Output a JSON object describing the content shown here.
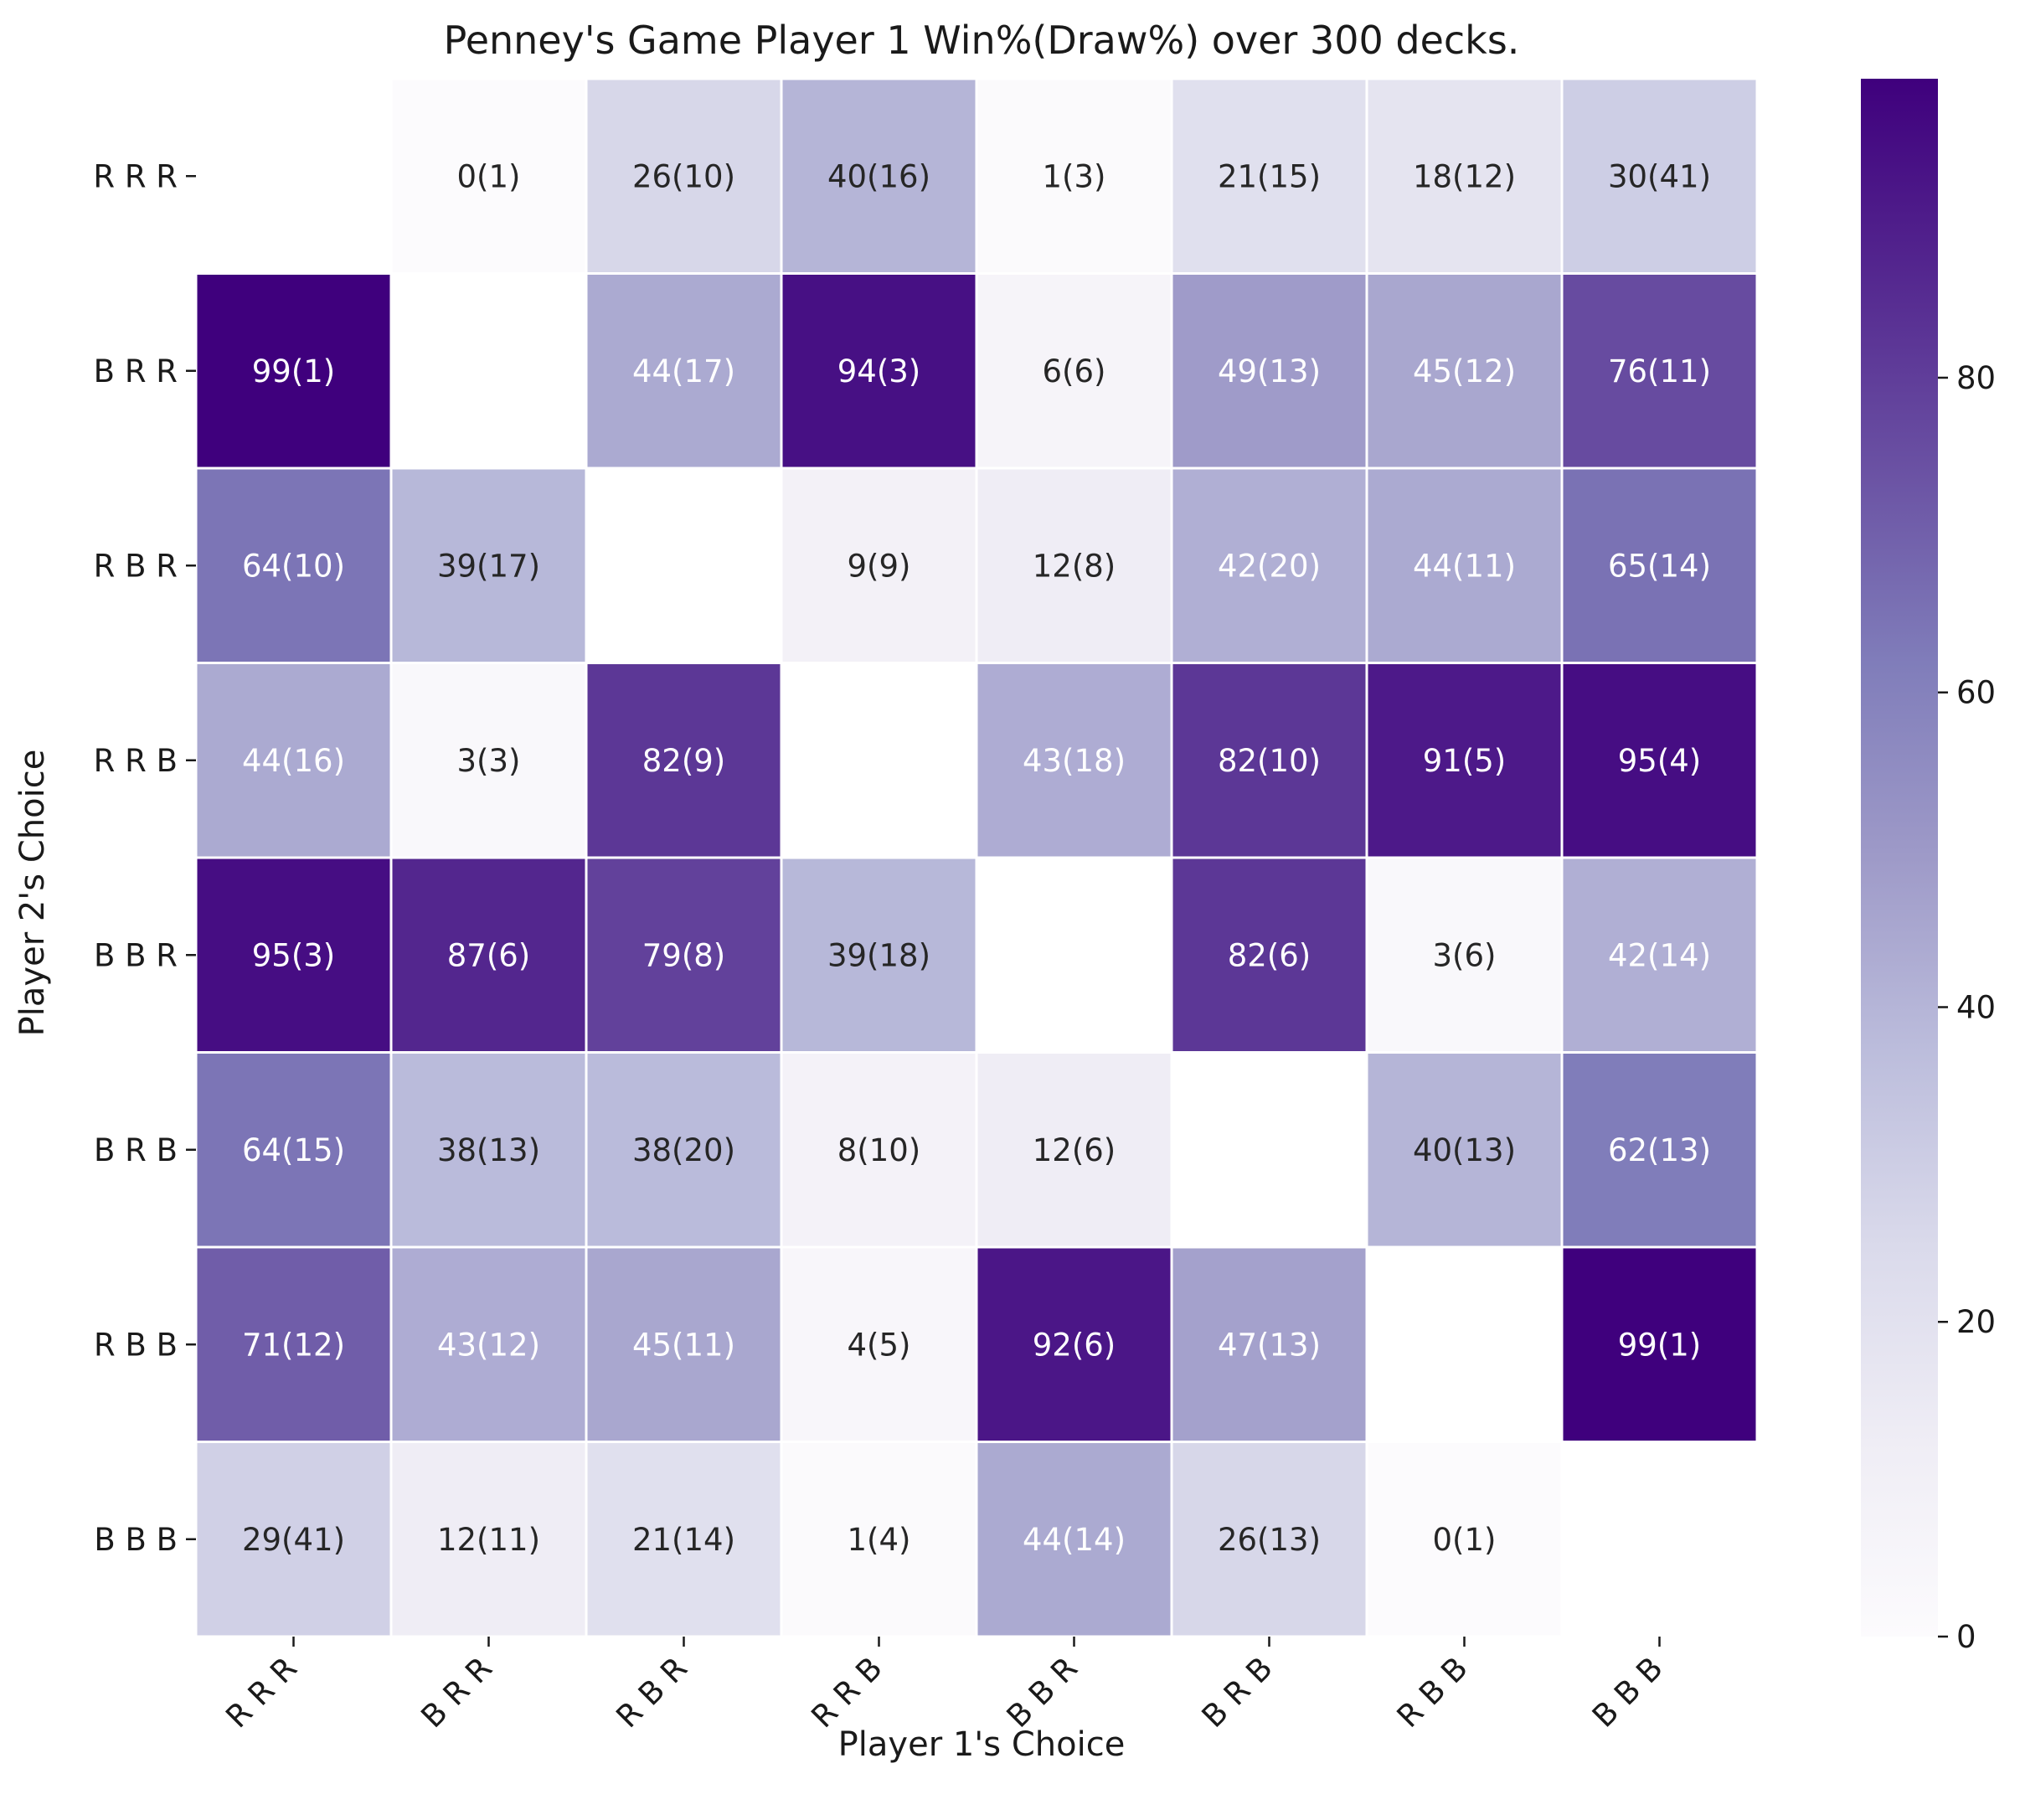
{
  "chart_data": {
    "type": "heatmap",
    "title": "Penney's Game Player 1 Win%(Draw%) over 300 decks.",
    "xlabel": "Player 1's Choice",
    "ylabel": "Player 2's Choice",
    "x_categories": [
      "R R R",
      "B R R",
      "R B R",
      "R R B",
      "B B R",
      "B R B",
      "R B B",
      "B B B"
    ],
    "y_categories": [
      "R R R",
      "B R R",
      "R B R",
      "R R B",
      "B B R",
      "B R B",
      "R B B",
      "B B B"
    ],
    "win": [
      [
        null,
        0,
        26,
        40,
        1,
        21,
        18,
        30
      ],
      [
        99,
        null,
        44,
        94,
        6,
        49,
        45,
        76
      ],
      [
        64,
        39,
        null,
        9,
        12,
        42,
        44,
        65
      ],
      [
        44,
        3,
        82,
        null,
        43,
        82,
        91,
        95
      ],
      [
        95,
        87,
        79,
        39,
        null,
        82,
        3,
        42
      ],
      [
        64,
        38,
        38,
        8,
        12,
        null,
        40,
        62
      ],
      [
        71,
        43,
        45,
        4,
        92,
        47,
        null,
        99
      ],
      [
        29,
        12,
        21,
        1,
        44,
        26,
        0,
        null
      ]
    ],
    "draw": [
      [
        null,
        1,
        10,
        16,
        3,
        15,
        12,
        41
      ],
      [
        1,
        null,
        17,
        3,
        6,
        13,
        12,
        11
      ],
      [
        10,
        17,
        null,
        9,
        8,
        20,
        11,
        14
      ],
      [
        16,
        3,
        9,
        null,
        18,
        10,
        5,
        4
      ],
      [
        3,
        6,
        8,
        18,
        null,
        6,
        6,
        14
      ],
      [
        15,
        13,
        20,
        10,
        6,
        null,
        13,
        13
      ],
      [
        12,
        12,
        11,
        5,
        6,
        13,
        null,
        1
      ],
      [
        41,
        11,
        14,
        4,
        14,
        13,
        1,
        null
      ]
    ],
    "annotations": [
      [
        "",
        "0(1)",
        "26(10)",
        "40(16)",
        "1(3)",
        "21(15)",
        "18(12)",
        "30(41)"
      ],
      [
        "99(1)",
        "",
        "44(17)",
        "94(3)",
        "6(6)",
        "49(13)",
        "45(12)",
        "76(11)"
      ],
      [
        "64(10)",
        "39(17)",
        "",
        "9(9)",
        "12(8)",
        "42(20)",
        "44(11)",
        "65(14)"
      ],
      [
        "44(16)",
        "3(3)",
        "82(9)",
        "",
        "43(18)",
        "82(10)",
        "91(5)",
        "95(4)"
      ],
      [
        "95(3)",
        "87(6)",
        "79(8)",
        "39(18)",
        "",
        "82(6)",
        "3(6)",
        "42(14)"
      ],
      [
        "64(15)",
        "38(13)",
        "38(20)",
        "8(10)",
        "12(6)",
        "",
        "40(13)",
        "62(13)"
      ],
      [
        "71(12)",
        "43(12)",
        "45(11)",
        "4(5)",
        "92(6)",
        "47(13)",
        "",
        "99(1)"
      ],
      [
        "29(41)",
        "12(11)",
        "21(14)",
        "1(4)",
        "44(14)",
        "26(13)",
        "0(1)",
        ""
      ]
    ],
    "colorbar": {
      "colormap": "Purples",
      "vmin": 0,
      "vmax": 99,
      "ticks": [
        0,
        20,
        40,
        60,
        80
      ]
    },
    "grid": false
  }
}
